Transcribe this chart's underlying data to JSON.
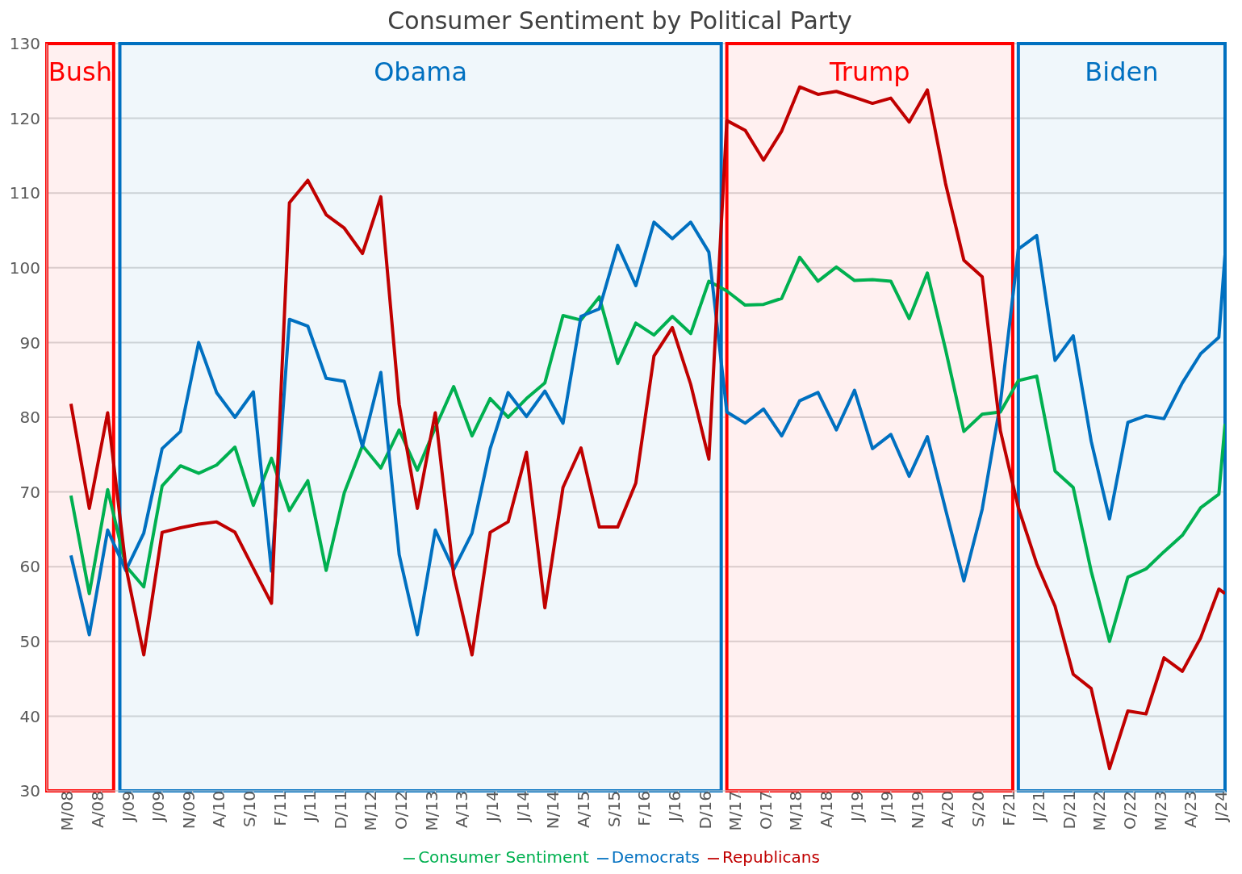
{
  "chart_data": {
    "type": "line",
    "title": "Consumer Sentiment by Political Party",
    "x": [
      "2008-03",
      "2008-06",
      "2008-09",
      "2008-12",
      "2009-03",
      "2009-06",
      "2009-09",
      "2009-12",
      "2010-03",
      "2010-06",
      "2010-09",
      "2010-12",
      "2011-03",
      "2011-06",
      "2011-09",
      "2011-12",
      "2012-03",
      "2012-06",
      "2012-09",
      "2012-12",
      "2013-03",
      "2013-06",
      "2013-09",
      "2013-12",
      "2014-03",
      "2014-06",
      "2014-09",
      "2014-12",
      "2015-03",
      "2015-06",
      "2015-09",
      "2015-12",
      "2016-03",
      "2016-06",
      "2016-09",
      "2016-12",
      "2017-03",
      "2017-06",
      "2017-09",
      "2017-12",
      "2018-03",
      "2018-06",
      "2018-09",
      "2018-12",
      "2019-03",
      "2019-06",
      "2019-09",
      "2019-12",
      "2020-03",
      "2020-06",
      "2020-09",
      "2020-12",
      "2021-03",
      "2021-06",
      "2021-09",
      "2021-12",
      "2022-03",
      "2022-06",
      "2022-09",
      "2022-12",
      "2023-03",
      "2023-06",
      "2023-09",
      "2023-12",
      "2024-01"
    ],
    "series": [
      {
        "name": "Consumer Sentiment",
        "color": "#00b050",
        "values": [
          69.5,
          56.4,
          70.3,
          60.1,
          57.3,
          70.8,
          73.5,
          72.5,
          73.6,
          76.0,
          68.2,
          74.5,
          67.5,
          71.5,
          59.5,
          69.9,
          76.2,
          73.2,
          78.3,
          72.9,
          78.6,
          84.1,
          77.5,
          82.5,
          80.0,
          82.5,
          84.6,
          93.6,
          93.0,
          96.1,
          87.2,
          92.6,
          91.0,
          93.5,
          91.2,
          98.2,
          96.9,
          95.0,
          95.1,
          95.9,
          101.4,
          98.2,
          100.1,
          98.3,
          98.4,
          98.2,
          93.2,
          99.3,
          89.1,
          78.1,
          80.4,
          80.7,
          84.9,
          85.5,
          72.8,
          70.6,
          59.4,
          50.0,
          58.6,
          59.7,
          62.0,
          64.2,
          67.9,
          69.7,
          79.1
        ]
      },
      {
        "name": "Democrats",
        "color": "#0070c0",
        "values": [
          61.5,
          50.9,
          64.9,
          59.5,
          64.5,
          75.8,
          78.1,
          90.0,
          83.3,
          80.0,
          83.4,
          59.4,
          93.1,
          92.2,
          85.2,
          84.8,
          76.1,
          86.0,
          61.6,
          50.9,
          64.9,
          59.6,
          64.5,
          75.8,
          83.3,
          80.1,
          83.5,
          79.2,
          93.5,
          94.5,
          103.0,
          97.6,
          106.1,
          103.9,
          106.1,
          102.1,
          80.7,
          79.2,
          81.1,
          77.5,
          82.2,
          83.3,
          78.3,
          83.6,
          75.8,
          77.7,
          72.1,
          77.4,
          67.7,
          58.1,
          67.7,
          81.9,
          102.5,
          104.3,
          87.6,
          90.9,
          76.8,
          66.4,
          79.3,
          80.2,
          79.8,
          84.6,
          88.5,
          90.7,
          101.8
        ]
      },
      {
        "name": "Republicans",
        "color": "#c00000",
        "values": [
          81.8,
          67.8,
          80.6,
          60.0,
          48.2,
          64.6,
          65.2,
          65.7,
          66.0,
          64.6,
          59.8,
          55.1,
          108.7,
          111.7,
          107.1,
          105.3,
          101.9,
          109.5,
          81.7,
          67.8,
          80.6,
          58.9,
          48.2,
          64.6,
          66.0,
          75.3,
          54.5,
          70.6,
          75.9,
          65.3,
          65.3,
          71.2,
          88.2,
          92.0,
          84.4,
          74.4,
          119.7,
          118.4,
          114.4,
          118.3,
          124.2,
          123.2,
          123.6,
          122.8,
          122.0,
          122.7,
          119.5,
          123.8,
          111.3,
          101.0,
          98.8,
          78.2,
          67.9,
          60.4,
          54.7,
          45.6,
          43.7,
          33.0,
          40.7,
          40.3,
          47.8,
          46.0,
          50.5,
          57.0,
          56.4
        ]
      }
    ],
    "xlim": [
      "2007-11",
      "2024-01"
    ],
    "xticks": [
      {
        "value": "2008-03",
        "label": "M/08"
      },
      {
        "value": "2008-08",
        "label": "A/08"
      },
      {
        "value": "2009-01",
        "label": "J/09"
      },
      {
        "value": "2009-06",
        "label": "J/09"
      },
      {
        "value": "2009-11",
        "label": "N/09"
      },
      {
        "value": "2010-04",
        "label": "A/10"
      },
      {
        "value": "2010-09",
        "label": "S/10"
      },
      {
        "value": "2011-02",
        "label": "F/11"
      },
      {
        "value": "2011-07",
        "label": "J/11"
      },
      {
        "value": "2011-12",
        "label": "D/11"
      },
      {
        "value": "2012-05",
        "label": "M/12"
      },
      {
        "value": "2012-10",
        "label": "O/12"
      },
      {
        "value": "2013-03",
        "label": "M/13"
      },
      {
        "value": "2013-08",
        "label": "A/13"
      },
      {
        "value": "2014-01",
        "label": "J/14"
      },
      {
        "value": "2014-06",
        "label": "J/14"
      },
      {
        "value": "2014-11",
        "label": "N/14"
      },
      {
        "value": "2015-04",
        "label": "A/15"
      },
      {
        "value": "2015-09",
        "label": "S/15"
      },
      {
        "value": "2016-02",
        "label": "F/16"
      },
      {
        "value": "2016-07",
        "label": "J/16"
      },
      {
        "value": "2016-12",
        "label": "D/16"
      },
      {
        "value": "2017-05",
        "label": "M/17"
      },
      {
        "value": "2017-10",
        "label": "O/17"
      },
      {
        "value": "2018-03",
        "label": "M/18"
      },
      {
        "value": "2018-08",
        "label": "A/18"
      },
      {
        "value": "2019-01",
        "label": "J/19"
      },
      {
        "value": "2019-06",
        "label": "J/19"
      },
      {
        "value": "2019-11",
        "label": "N/19"
      },
      {
        "value": "2020-04",
        "label": "A/20"
      },
      {
        "value": "2020-09",
        "label": "S/20"
      },
      {
        "value": "2021-02",
        "label": "F/21"
      },
      {
        "value": "2021-07",
        "label": "J/21"
      },
      {
        "value": "2021-12",
        "label": "D/21"
      },
      {
        "value": "2022-05",
        "label": "M/22"
      },
      {
        "value": "2022-10",
        "label": "O/22"
      },
      {
        "value": "2023-03",
        "label": "M/23"
      },
      {
        "value": "2023-08",
        "label": "A/23"
      },
      {
        "value": "2024-01",
        "label": "J/24"
      }
    ],
    "ylim": [
      30,
      130
    ],
    "yticks": [
      30,
      40,
      50,
      60,
      70,
      80,
      90,
      100,
      110,
      120,
      130
    ],
    "bands": [
      {
        "axis": "x",
        "from": "2007-11",
        "to": "2008-10",
        "label": "Bush",
        "color": "#ff0000"
      },
      {
        "axis": "x",
        "from": "2008-11",
        "to": "2017-02",
        "label": "Obama",
        "color": "#0070c0"
      },
      {
        "axis": "x",
        "from": "2017-03",
        "to": "2021-02",
        "label": "Trump",
        "color": "#ff0000"
      },
      {
        "axis": "x",
        "from": "2021-03",
        "to": "2024-01",
        "label": "Biden",
        "color": "#0070c0"
      }
    ],
    "grid": "y",
    "legend": "bottom",
    "marker": "none",
    "line_style": "solid"
  }
}
